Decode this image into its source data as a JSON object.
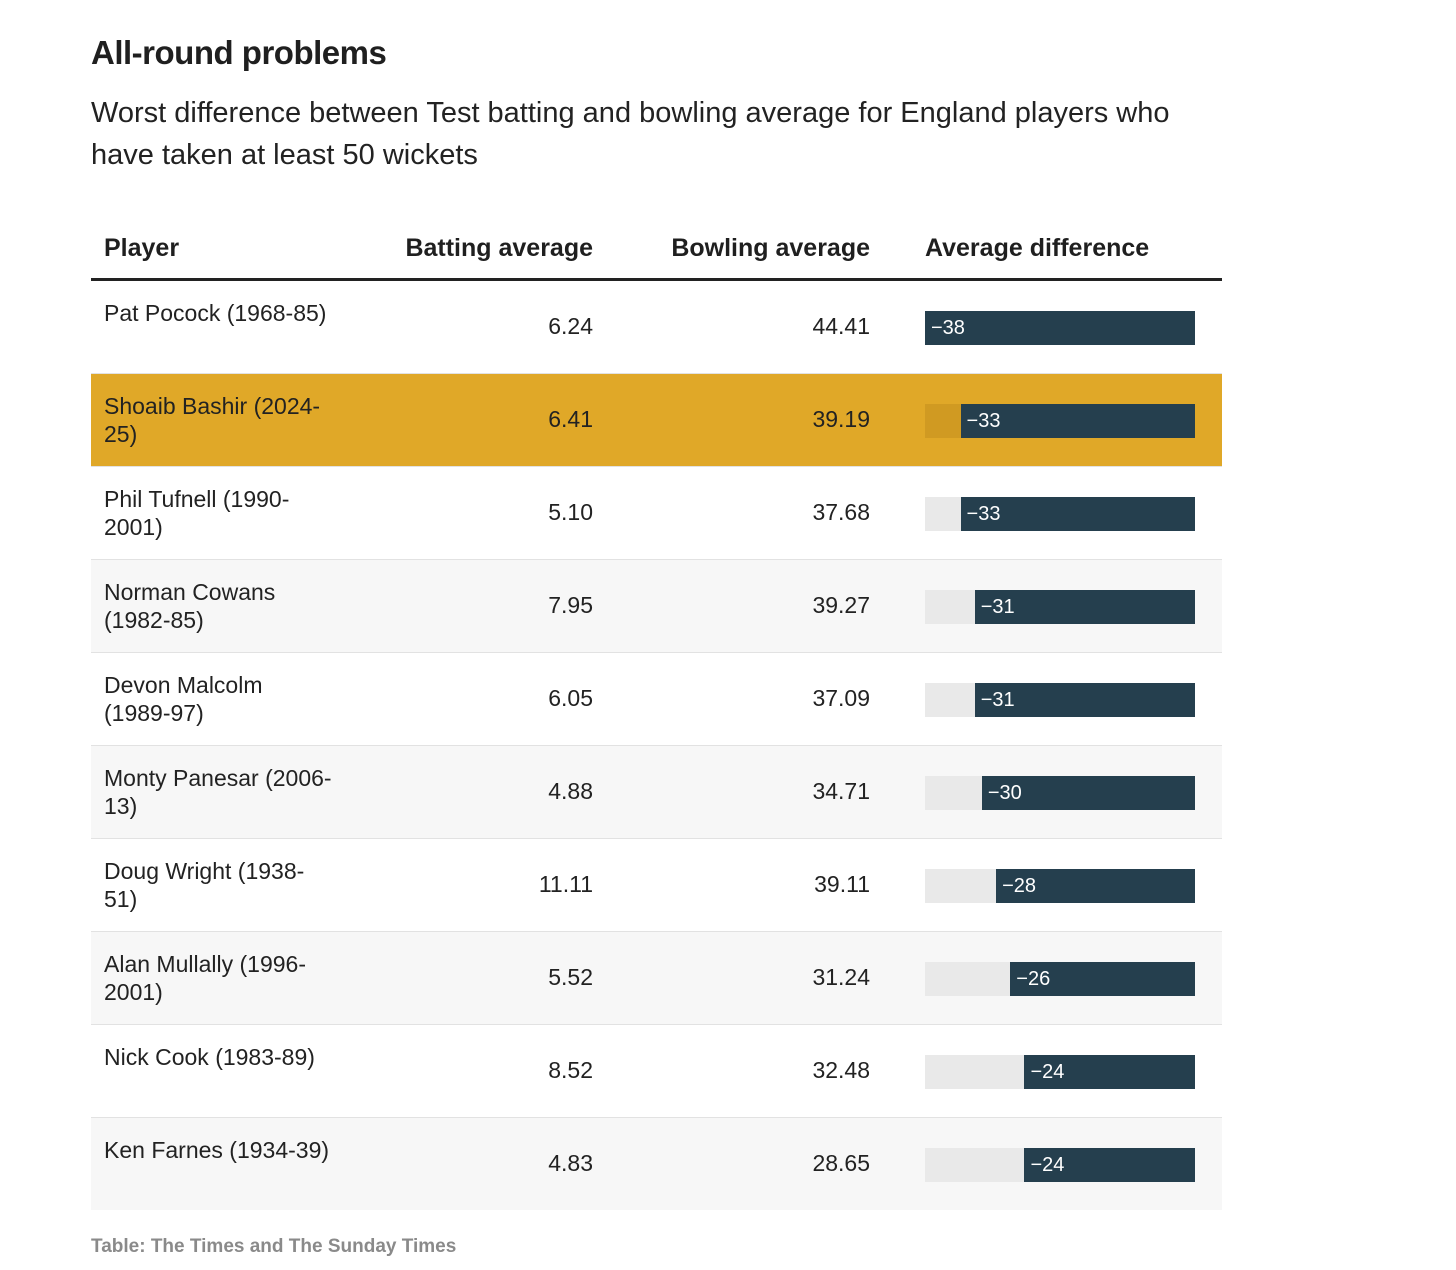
{
  "title": "All-round problems",
  "subtitle": "Worst difference between Test batting and bowling average for England players who have taken at least 50 wickets",
  "source": "Table: The Times and The Sunday Times",
  "colors": {
    "bar": "#253f4e",
    "track": "#e9e9e9",
    "highlight_row": "#e0a828",
    "highlight_track": "#d09a22",
    "alt_row": "#f7f7f7"
  },
  "chart_data": {
    "type": "table",
    "columns": [
      "Player",
      "Batting average",
      "Bowling average",
      "Average difference"
    ],
    "bar_scale_max": 38,
    "highlighted_row": 1,
    "rows": [
      {
        "player": "Pat Pocock (1968-85)",
        "batting": "6.24",
        "bowling": "44.41",
        "difference": -38,
        "difference_label": "−38"
      },
      {
        "player": "Shoaib Bashir (2024-25)",
        "batting": "6.41",
        "bowling": "39.19",
        "difference": -33,
        "difference_label": "−33"
      },
      {
        "player": "Phil Tufnell (1990-2001)",
        "batting": "5.10",
        "bowling": "37.68",
        "difference": -33,
        "difference_label": "−33"
      },
      {
        "player": "Norman Cowans (1982-85)",
        "batting": "7.95",
        "bowling": "39.27",
        "difference": -31,
        "difference_label": "−31"
      },
      {
        "player": "Devon Malcolm (1989-97)",
        "batting": "6.05",
        "bowling": "37.09",
        "difference": -31,
        "difference_label": "−31"
      },
      {
        "player": "Monty Panesar (2006-13)",
        "batting": "4.88",
        "bowling": "34.71",
        "difference": -30,
        "difference_label": "−30"
      },
      {
        "player": "Doug Wright (1938-51)",
        "batting": "11.11",
        "bowling": "39.11",
        "difference": -28,
        "difference_label": "−28"
      },
      {
        "player": "Alan Mullally (1996-2001)",
        "batting": "5.52",
        "bowling": "31.24",
        "difference": -26,
        "difference_label": "−26"
      },
      {
        "player": "Nick Cook (1983-89)",
        "batting": "8.52",
        "bowling": "32.48",
        "difference": -24,
        "difference_label": "−24"
      },
      {
        "player": "Ken Farnes (1934-39)",
        "batting": "4.83",
        "bowling": "28.65",
        "difference": -24,
        "difference_label": "−24"
      }
    ]
  }
}
